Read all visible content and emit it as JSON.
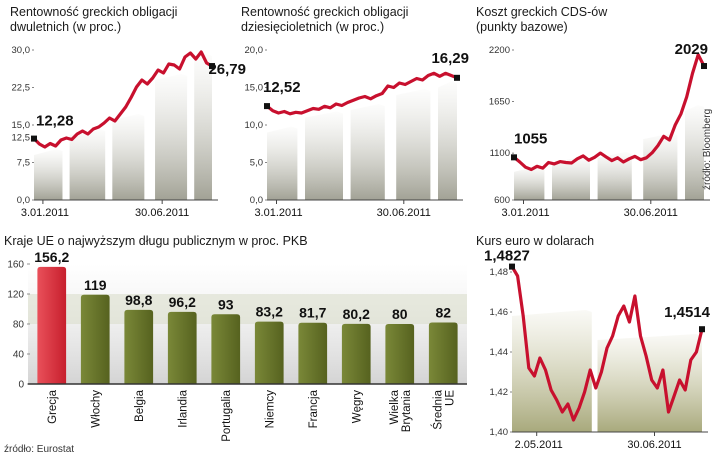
{
  "chart_data": [
    {
      "type": "line",
      "title": "Rentowność greckich obligacji dwuletnich (w proc.)",
      "yticks": [
        "0,0",
        "7,5",
        "12,5",
        "15,0",
        "22,5",
        "30,0"
      ],
      "ylim": [
        0,
        30
      ],
      "xticks": [
        "3.01.2011",
        "30.06.2011"
      ],
      "start_label": "12,28",
      "end_label": "26,79",
      "series": [
        {
          "values": [
            12.28,
            11.2,
            10.6,
            11.3,
            10.8,
            12.0,
            12.4,
            12.1,
            13.2,
            13.8,
            13.2,
            14.2,
            14.6,
            15.4,
            16.4,
            15.8,
            17.2,
            18.6,
            20.5,
            22.6,
            24.0,
            23.2,
            24.4,
            26.0,
            25.4,
            27.2,
            27.0,
            26.2,
            28.6,
            29.4,
            28.2,
            29.6,
            27.4,
            26.79
          ]
        }
      ],
      "line_color": "#c8102e",
      "grid": false
    },
    {
      "type": "line",
      "title": "Rentowność greckich obligacji dziesięcioletnich (w proc.)",
      "yticks": [
        "0,0",
        "5,0",
        "10,0",
        "15,0",
        "20,0"
      ],
      "ylim": [
        0,
        20
      ],
      "xticks": [
        "3.01.2011",
        "30.06.2011"
      ],
      "start_label": "12,52",
      "end_label": "16,29",
      "series": [
        {
          "values": [
            12.52,
            11.9,
            11.6,
            11.8,
            11.5,
            11.7,
            11.6,
            11.9,
            12.2,
            12.1,
            12.5,
            12.3,
            12.8,
            12.6,
            13.0,
            13.3,
            13.6,
            13.8,
            13.5,
            13.9,
            14.2,
            15.2,
            15.0,
            15.6,
            15.4,
            15.8,
            16.2,
            16.0,
            16.6,
            16.9,
            16.5,
            16.9,
            16.6,
            16.29
          ]
        }
      ],
      "line_color": "#c8102e",
      "grid": false
    },
    {
      "type": "line",
      "title": "Koszt greckich CDS-ów (punkty bazowe)",
      "yticks": [
        "600",
        "1100",
        "1650",
        "2200"
      ],
      "ylim": [
        600,
        2200
      ],
      "xticks": [
        "3.01.2011",
        "30.06.2011"
      ],
      "start_label": "1055",
      "end_label": "2029",
      "source": "źródło: Bloomberg",
      "series": [
        {
          "values": [
            1055,
            1005,
            950,
            925,
            960,
            940,
            1000,
            985,
            1010,
            1000,
            995,
            1040,
            1070,
            1025,
            1055,
            1100,
            1060,
            1020,
            1050,
            1005,
            1040,
            1065,
            1030,
            1050,
            1105,
            1180,
            1280,
            1240,
            1400,
            1520,
            1700,
            1950,
            2150,
            2029
          ]
        }
      ],
      "line_color": "#c8102e",
      "grid": false
    },
    {
      "type": "bar",
      "title": "Kraje UE o najwyższym  długu publicznym w proc. PKB",
      "yticks": [
        "0",
        "40",
        "80",
        "120",
        "160"
      ],
      "ylim": [
        0,
        160
      ],
      "categories": [
        "Grecja",
        "Włochy",
        "Belgia",
        "Irlandia",
        "Portugalia",
        "Niemcy",
        "Francja",
        "Węgry",
        "Wielka Brytania",
        "Średnia UE"
      ],
      "category_lines": [
        [
          "Grecja"
        ],
        [
          "Włochy"
        ],
        [
          "Belgia"
        ],
        [
          "Irlandia"
        ],
        [
          "Portugalia"
        ],
        [
          "Niemcy"
        ],
        [
          "Francja"
        ],
        [
          "Węgry"
        ],
        [
          "Wielka",
          "Brytania"
        ],
        [
          "Średnia",
          "UE"
        ]
      ],
      "value_labels": [
        "156,2",
        "119",
        "98,8",
        "96,2",
        "93",
        "83,2",
        "81,7",
        "80,2",
        "80",
        "82"
      ],
      "values": [
        156.2,
        119,
        98.8,
        96.2,
        93,
        83.2,
        81.7,
        80.2,
        80,
        82
      ],
      "highlight_color": "#d93640",
      "bar_color": "#6c7a2e",
      "source": "źródło: Eurostat",
      "grid": false
    },
    {
      "type": "line",
      "title": "Kurs euro w dolarach",
      "yticks": [
        "1,40",
        "1,42",
        "1,44",
        "1,46",
        "1,48"
      ],
      "ylim": [
        1.4,
        1.485
      ],
      "xticks": [
        "2.05.2011",
        "30.06.2011"
      ],
      "start_label": "1,4827",
      "end_label": "1,4514",
      "series": [
        {
          "values": [
            1.4827,
            1.478,
            1.458,
            1.432,
            1.428,
            1.437,
            1.431,
            1.421,
            1.416,
            1.41,
            1.414,
            1.406,
            1.412,
            1.42,
            1.431,
            1.422,
            1.43,
            1.442,
            1.448,
            1.458,
            1.463,
            1.455,
            1.468,
            1.448,
            1.438,
            1.426,
            1.422,
            1.431,
            1.41,
            1.418,
            1.426,
            1.421,
            1.436,
            1.44,
            1.4514
          ]
        }
      ],
      "line_color": "#c8102e",
      "grid": false
    }
  ]
}
